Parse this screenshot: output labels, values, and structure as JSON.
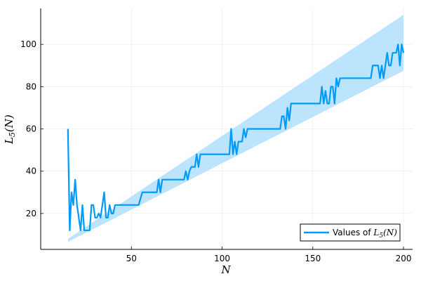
{
  "chart_data": {
    "type": "line",
    "title": "",
    "xlabel": "N",
    "ylabel": "L_5(N)",
    "ylabel_sub": "5",
    "xlim": [
      0,
      205
    ],
    "ylim": [
      3,
      117
    ],
    "xticks": [
      50,
      100,
      150,
      200
    ],
    "yticks": [
      20,
      40,
      60,
      80,
      100
    ],
    "grid": true,
    "legend_position": "bottom-right",
    "colors": {
      "line": "#009af9",
      "band": "#bde4fd"
    },
    "series": [
      {
        "name": "Values of L_5(N)",
        "name_prefix": "Values of ",
        "name_symbol": "L",
        "name_sub": "5",
        "name_suffix": "(N)",
        "kind": "line",
        "points": [
          [
            15,
            60
          ],
          [
            16,
            12
          ],
          [
            17,
            30
          ],
          [
            18,
            24
          ],
          [
            19,
            36
          ],
          [
            20,
            24
          ],
          [
            22,
            12
          ],
          [
            23,
            24
          ],
          [
            24,
            12
          ],
          [
            27,
            12
          ],
          [
            28,
            24
          ],
          [
            29,
            24
          ],
          [
            30,
            18
          ],
          [
            31,
            18
          ],
          [
            32,
            20
          ],
          [
            33,
            18
          ],
          [
            34,
            24
          ],
          [
            35,
            30
          ],
          [
            36,
            18
          ],
          [
            37,
            18
          ],
          [
            38,
            24
          ],
          [
            39,
            20
          ],
          [
            40,
            20
          ],
          [
            41,
            24
          ],
          [
            54,
            24
          ],
          [
            56,
            30
          ],
          [
            64,
            30
          ],
          [
            65,
            36
          ],
          [
            66,
            30
          ],
          [
            67,
            36
          ],
          [
            79,
            36
          ],
          [
            80,
            40
          ],
          [
            81,
            36
          ],
          [
            82,
            40
          ],
          [
            83,
            42
          ],
          [
            85,
            42
          ],
          [
            86,
            48
          ],
          [
            87,
            42
          ],
          [
            88,
            48
          ],
          [
            89,
            48
          ],
          [
            90,
            48
          ],
          [
            104,
            48
          ],
          [
            105,
            60
          ],
          [
            106,
            48
          ],
          [
            107,
            54
          ],
          [
            108,
            48
          ],
          [
            109,
            54
          ],
          [
            111,
            54
          ],
          [
            112,
            60
          ],
          [
            113,
            56
          ],
          [
            114,
            60
          ],
          [
            132,
            60
          ],
          [
            133,
            66
          ],
          [
            134,
            66
          ],
          [
            135,
            60
          ],
          [
            136,
            70
          ],
          [
            137,
            64
          ],
          [
            138,
            72
          ],
          [
            154,
            72
          ],
          [
            155,
            80
          ],
          [
            156,
            72
          ],
          [
            157,
            78
          ],
          [
            158,
            72
          ],
          [
            159,
            72
          ],
          [
            160,
            80
          ],
          [
            161,
            80
          ],
          [
            162,
            72
          ],
          [
            163,
            84
          ],
          [
            164,
            80
          ],
          [
            165,
            84
          ],
          [
            166,
            84
          ],
          [
            182,
            84
          ],
          [
            183,
            90
          ],
          [
            186,
            90
          ],
          [
            187,
            84
          ],
          [
            188,
            90
          ],
          [
            189,
            84
          ],
          [
            190,
            90
          ],
          [
            191,
            96
          ],
          [
            192,
            90
          ],
          [
            193,
            90
          ],
          [
            194,
            96
          ],
          [
            196,
            96
          ],
          [
            197,
            100
          ],
          [
            198,
            90
          ],
          [
            199,
            100
          ],
          [
            200,
            96
          ]
        ]
      },
      {
        "name": "",
        "kind": "band",
        "x": [
          15,
          200
        ],
        "lower": [
          6.5,
          87.5
        ],
        "upper": [
          8,
          114
        ]
      }
    ]
  }
}
